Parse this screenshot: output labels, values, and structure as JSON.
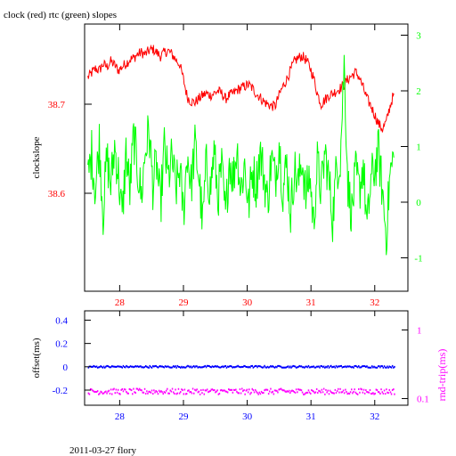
{
  "page": {
    "title": "clock (red) rtc (green) slopes",
    "footer": "2011-03-27 flory"
  },
  "colors": {
    "clock": "#ff0000",
    "rtc": "#00ff00",
    "offset": "#0000ff",
    "rndtrip": "#ff00ff",
    "axis": "#000000"
  },
  "chart_data": [
    {
      "type": "line",
      "title": "clock (red) rtc (green) slopes",
      "ylabel": "clockslope",
      "x_ticks": [
        28,
        29,
        30,
        31,
        32
      ],
      "xlim": [
        27.45,
        32.52
      ],
      "ylim_left": [
        38.49,
        38.79
      ],
      "yticks_left": [
        38.6,
        38.7
      ],
      "ylim_right": [
        -1.6,
        3.2
      ],
      "yticks_right": [
        -1,
        0,
        1,
        2,
        3
      ],
      "grid": false,
      "series": [
        {
          "name": "clock",
          "axis": "left",
          "x": [
            27.5,
            27.56,
            27.62,
            27.68,
            27.74,
            27.8,
            27.86,
            27.92,
            27.98,
            28.04,
            28.1,
            28.16,
            28.22,
            28.28,
            28.34,
            28.4,
            28.46,
            28.52,
            28.58,
            28.64,
            28.7,
            28.76,
            28.82,
            28.88,
            28.94,
            29.0,
            29.06,
            29.12,
            29.18,
            29.24,
            29.3,
            29.36,
            29.42,
            29.48,
            29.54,
            29.6,
            29.66,
            29.72,
            29.78,
            29.84,
            29.9,
            29.96,
            30.02,
            30.08,
            30.14,
            30.2,
            30.26,
            30.32,
            30.38,
            30.44,
            30.5,
            30.56,
            30.62,
            30.68,
            30.74,
            30.8,
            30.86,
            30.92,
            30.98,
            31.04,
            31.1,
            31.16,
            31.22,
            31.28,
            31.34,
            31.4,
            31.46,
            31.52,
            31.58,
            31.64,
            31.7,
            31.76,
            31.82,
            31.88,
            31.94,
            32.0,
            32.06,
            32.12,
            32.18,
            32.24,
            32.3
          ],
          "values": [
            38.73,
            38.735,
            38.74,
            38.738,
            38.745,
            38.742,
            38.748,
            38.744,
            38.738,
            38.742,
            38.746,
            38.75,
            38.752,
            38.756,
            38.758,
            38.756,
            38.76,
            38.762,
            38.758,
            38.754,
            38.758,
            38.76,
            38.756,
            38.75,
            38.745,
            38.728,
            38.708,
            38.703,
            38.702,
            38.706,
            38.71,
            38.712,
            38.71,
            38.712,
            38.715,
            38.712,
            38.706,
            38.71,
            38.712,
            38.716,
            38.718,
            38.72,
            38.722,
            38.718,
            38.712,
            38.708,
            38.703,
            38.7,
            38.698,
            38.698,
            38.71,
            38.72,
            38.728,
            38.738,
            38.748,
            38.752,
            38.754,
            38.75,
            38.742,
            38.73,
            38.712,
            38.7,
            38.705,
            38.71,
            38.712,
            38.715,
            38.718,
            38.722,
            38.728,
            38.732,
            38.736,
            38.73,
            38.718,
            38.706,
            38.698,
            38.688,
            38.678,
            38.672,
            38.68,
            38.698,
            38.712
          ]
        },
        {
          "name": "rtc",
          "axis": "right",
          "x": [
            27.5,
            27.56,
            27.62,
            27.68,
            27.74,
            27.8,
            27.86,
            27.92,
            27.98,
            28.04,
            28.1,
            28.16,
            28.22,
            28.28,
            28.34,
            28.4,
            28.46,
            28.52,
            28.58,
            28.64,
            28.7,
            28.76,
            28.82,
            28.88,
            28.94,
            29.0,
            29.06,
            29.12,
            29.18,
            29.24,
            29.3,
            29.36,
            29.42,
            29.48,
            29.54,
            29.6,
            29.66,
            29.72,
            29.78,
            29.84,
            29.9,
            29.96,
            30.02,
            30.08,
            30.14,
            30.2,
            30.26,
            30.32,
            30.38,
            30.44,
            30.5,
            30.56,
            30.62,
            30.68,
            30.74,
            30.8,
            30.86,
            30.92,
            30.98,
            31.04,
            31.1,
            31.16,
            31.22,
            31.28,
            31.34,
            31.4,
            31.46,
            31.52,
            31.58,
            31.64,
            31.7,
            31.76,
            31.82,
            31.88,
            31.94,
            32.0,
            32.06,
            32.12,
            32.18,
            32.24,
            32.3
          ],
          "values": [
            0.4,
            0.9,
            0.2,
            1.1,
            -0.2,
            0.8,
            0.3,
            1.0,
            0.5,
            -0.3,
            0.9,
            0.2,
            1.2,
            0.6,
            0.1,
            0.9,
            1.3,
            0.3,
            0.7,
            -0.1,
            1.0,
            0.4,
            0.8,
            0.2,
            0.6,
            -0.2,
            0.9,
            0.3,
            1.0,
            0.5,
            -0.4,
            0.7,
            0.2,
            0.9,
            0.1,
            0.6,
            -0.3,
            0.8,
            0.4,
            1.0,
            0.2,
            0.7,
            -0.1,
            0.6,
            0.3,
            0.9,
            0.5,
            0.0,
            0.8,
            0.4,
            1.1,
            0.2,
            0.7,
            -0.2,
            0.6,
            0.3,
            0.8,
            0.1,
            0.5,
            -0.4,
            0.7,
            0.2,
            0.9,
            0.4,
            -0.3,
            0.6,
            0.8,
            2.5,
            0.3,
            -0.2,
            0.5,
            0.2,
            0.7,
            -0.5,
            0.4,
            0.6,
            0.9,
            0.2,
            -0.6,
            0.5,
            0.8
          ]
        }
      ]
    },
    {
      "type": "scatter",
      "ylabel_left": "offset(ms)",
      "ylabel_right": "rnd-trip(ms)",
      "x_ticks": [
        28,
        29,
        30,
        31,
        32
      ],
      "xlim": [
        27.45,
        32.52
      ],
      "ylim_left": [
        -0.33,
        0.48
      ],
      "yticks_left": [
        -0.2,
        0,
        0.2,
        0.4
      ],
      "ylim_right": [
        0.08,
        1.9
      ],
      "yticks_right": [
        0.1,
        1
      ],
      "right_scale": "log",
      "grid": false,
      "series": [
        {
          "name": "offset",
          "axis": "left",
          "x_range": [
            27.5,
            32.3
          ],
          "center": 0.0,
          "spread": 0.008
        },
        {
          "name": "rnd-trip",
          "axis": "right",
          "x_range": [
            27.5,
            32.3
          ],
          "center": 0.127,
          "spread": 0.012
        }
      ]
    }
  ]
}
